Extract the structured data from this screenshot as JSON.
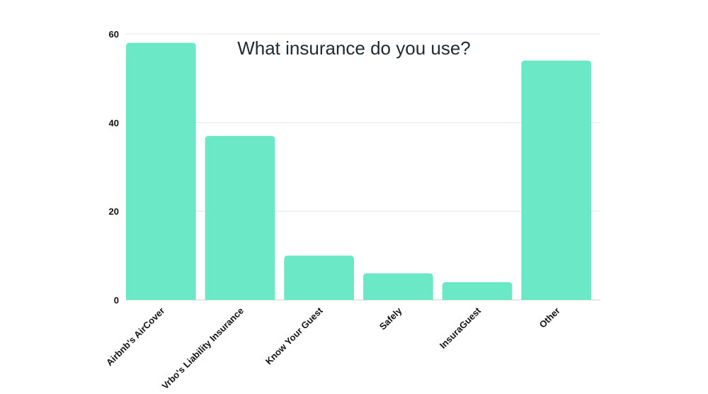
{
  "chart_data": {
    "type": "bar",
    "title": "What insurance do you use?",
    "categories": [
      "Airbnb's AirCover",
      "Vrbo's Liability Insurance",
      "Know Your Guest",
      "Safely",
      "InsuraGuest",
      "Other"
    ],
    "values": [
      58,
      37,
      10,
      6,
      4,
      54
    ],
    "xlabel": "",
    "ylabel": "",
    "ylim": [
      0,
      60
    ],
    "yticks": [
      0,
      20,
      40,
      60
    ],
    "grid": true,
    "legend": "none",
    "colors": {
      "bar": "#6be8c6",
      "grid": "#e3e6e8",
      "text": "#111111"
    }
  }
}
